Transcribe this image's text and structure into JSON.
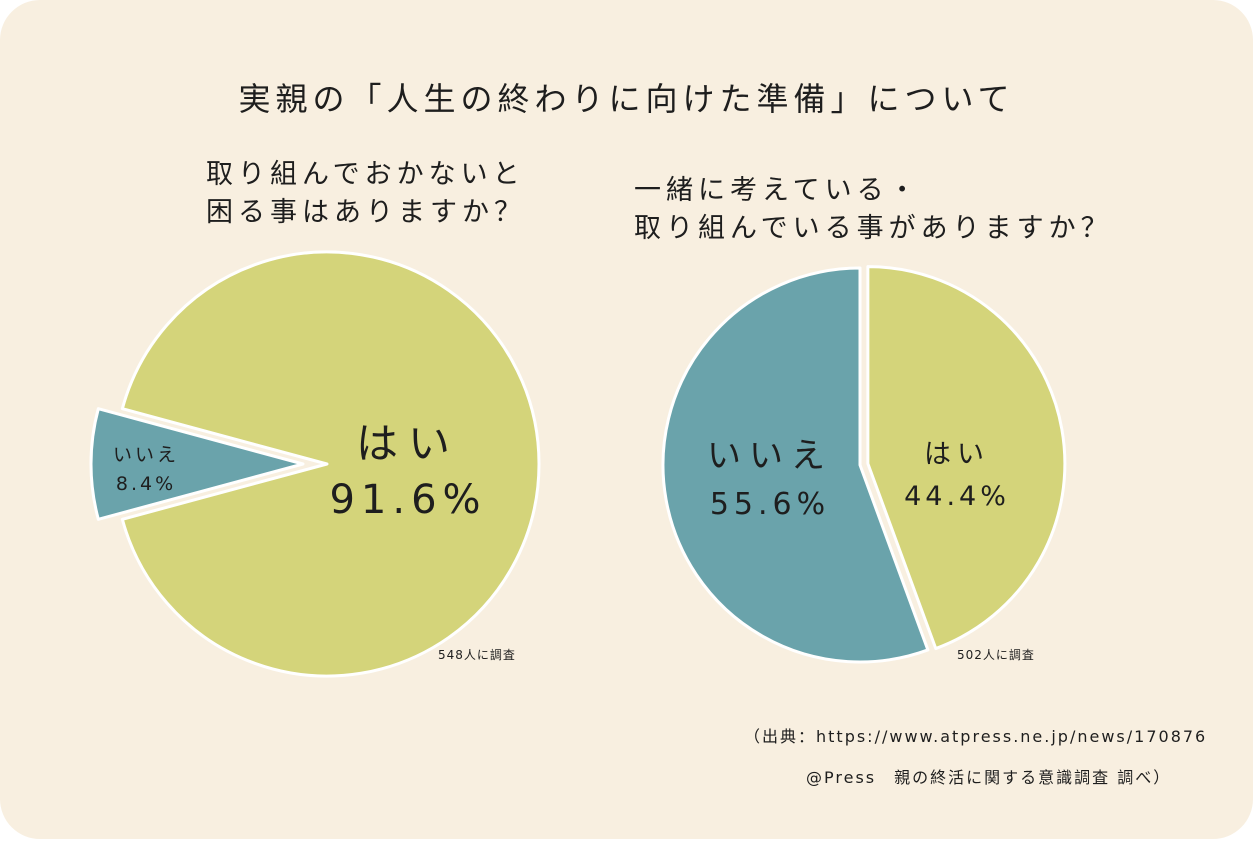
{
  "title": "実親の「人生の終わりに向けた準備」について",
  "chart_data": [
    {
      "type": "pie",
      "title": "取り組んでおかないと\n困る事はありますか？",
      "categories": [
        "はい",
        "いいえ"
      ],
      "values": [
        91.6,
        8.4
      ],
      "labels": [
        "91.6%",
        "8.4%"
      ],
      "colors": [
        "#d4d47a",
        "#6aa3ab"
      ],
      "exploded": "いいえ",
      "respondents": "548人に調査"
    },
    {
      "type": "pie",
      "title": "一緒に考えている・\n取り組んでいる事がありますか？",
      "categories": [
        "はい",
        "いいえ"
      ],
      "values": [
        44.4,
        55.6
      ],
      "labels": [
        "44.4%",
        "55.6%"
      ],
      "colors": [
        "#d4d47a",
        "#6aa3ab"
      ],
      "exploded": "はい",
      "respondents": "502人に調査"
    }
  ],
  "source": {
    "line1": "（出典：https://www.atpress.ne.jp/news/170876",
    "line2": "@Press　親の終活に関する意識調査 調べ）"
  }
}
